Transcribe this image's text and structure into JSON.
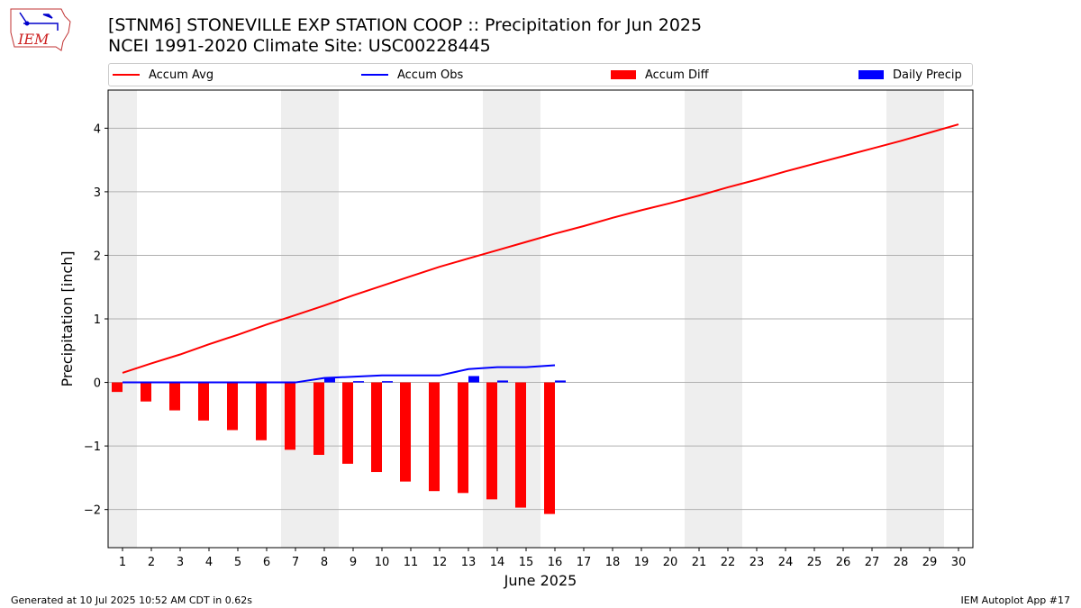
{
  "header": {
    "title_line1": "[STNM6] STONEVILLE EXP STATION COOP :: Precipitation for Jun 2025",
    "title_line2": "NCEI 1991-2020 Climate Site: USC00228445",
    "logo_text": "IEM"
  },
  "legend": {
    "items": [
      {
        "label": "Accum Avg",
        "color": "#ff0000",
        "kind": "line"
      },
      {
        "label": "Accum Obs",
        "color": "#0000ff",
        "kind": "line"
      },
      {
        "label": "Accum Diff",
        "color": "#ff0000",
        "kind": "bar"
      },
      {
        "label": "Daily Precip",
        "color": "#0000ff",
        "kind": "bar"
      }
    ]
  },
  "footer": {
    "left": "Generated at 10 Jul 2025 10:52 AM CDT in 0.62s",
    "right": "IEM Autoplot App #17"
  },
  "chart_data": {
    "type": "bar",
    "xlabel": "June 2025",
    "ylabel": "Precipitation [inch]",
    "xlim": [
      0.5,
      30.5
    ],
    "ylim": [
      -2.6,
      4.6
    ],
    "yticks": [
      -2,
      -1,
      0,
      1,
      2,
      3,
      4
    ],
    "xticks": [
      1,
      2,
      3,
      4,
      5,
      6,
      7,
      8,
      9,
      10,
      11,
      12,
      13,
      14,
      15,
      16,
      17,
      18,
      19,
      20,
      21,
      22,
      23,
      24,
      25,
      26,
      27,
      28,
      29,
      30
    ],
    "grid": "horizontal",
    "legend_position": "top",
    "weekend_shading": [
      [
        0.5,
        1.5
      ],
      [
        6.5,
        8.5
      ],
      [
        13.5,
        15.5
      ],
      [
        20.5,
        22.5
      ],
      [
        27.5,
        29.5
      ]
    ],
    "series": [
      {
        "name": "Accum Avg",
        "type": "line",
        "color": "#ff0000",
        "x": [
          1,
          2,
          3,
          4,
          5,
          6,
          7,
          8,
          9,
          10,
          11,
          12,
          13,
          14,
          15,
          16,
          17,
          18,
          19,
          20,
          21,
          22,
          23,
          24,
          25,
          26,
          27,
          28,
          29,
          30
        ],
        "values": [
          0.15,
          0.3,
          0.44,
          0.6,
          0.75,
          0.91,
          1.06,
          1.21,
          1.37,
          1.52,
          1.67,
          1.82,
          1.95,
          2.08,
          2.21,
          2.34,
          2.46,
          2.59,
          2.71,
          2.82,
          2.94,
          3.07,
          3.19,
          3.32,
          3.44,
          3.56,
          3.68,
          3.8,
          3.93,
          4.06
        ]
      },
      {
        "name": "Accum Obs",
        "type": "line",
        "color": "#0000ff",
        "x": [
          1,
          2,
          3,
          4,
          5,
          6,
          7,
          8,
          9,
          10,
          11,
          12,
          13,
          14,
          15,
          16
        ],
        "values": [
          0,
          0,
          0,
          0,
          0,
          0,
          0,
          0.07,
          0.09,
          0.11,
          0.11,
          0.11,
          0.21,
          0.24,
          0.24,
          0.27
        ]
      },
      {
        "name": "Accum Diff",
        "type": "bar",
        "color": "#ff0000",
        "x": [
          1,
          2,
          3,
          4,
          5,
          6,
          7,
          8,
          9,
          10,
          11,
          12,
          13,
          14,
          15,
          16
        ],
        "values": [
          -0.15,
          -0.3,
          -0.44,
          -0.6,
          -0.75,
          -0.91,
          -1.06,
          -1.14,
          -1.28,
          -1.41,
          -1.56,
          -1.71,
          -1.74,
          -1.84,
          -1.97,
          -2.07
        ]
      },
      {
        "name": "Daily Precip",
        "type": "bar",
        "color": "#0000ff",
        "x": [
          8,
          9,
          10,
          13,
          14,
          16
        ],
        "values": [
          0.07,
          0.02,
          0.02,
          0.1,
          0.03,
          0.03
        ]
      }
    ]
  }
}
